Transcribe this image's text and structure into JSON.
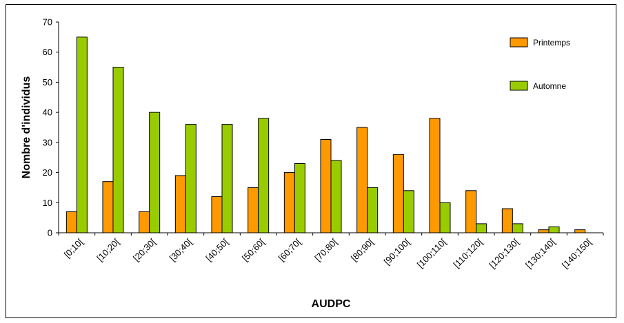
{
  "chart_data": {
    "type": "bar",
    "categories": [
      "[0;10[",
      "[10;20[",
      "[20;30[",
      "[30;40[",
      "[40;50[",
      "[50;60[",
      "[60;70[",
      "[70;80[",
      "[80;90[",
      "[90;100[",
      "[100;110[",
      "[110;120[",
      "[120;130[",
      "[130;140[",
      "[140;150["
    ],
    "series": [
      {
        "name": "Printemps",
        "color": "#FF9900",
        "values": [
          7,
          17,
          7,
          19,
          12,
          15,
          20,
          31,
          35,
          26,
          38,
          14,
          8,
          1,
          1
        ]
      },
      {
        "name": "Automne",
        "color": "#99CC00",
        "values": [
          65,
          55,
          40,
          36,
          36,
          38,
          23,
          24,
          15,
          14,
          10,
          3,
          3,
          2,
          0
        ]
      }
    ],
    "title": "",
    "xlabel": "AUDPC",
    "ylabel": "Nombre d'individus",
    "ylim": [
      0,
      70
    ],
    "yticks": [
      0,
      10,
      20,
      30,
      40,
      50,
      60,
      70
    ],
    "grid": false,
    "legend_position": "top-right"
  }
}
